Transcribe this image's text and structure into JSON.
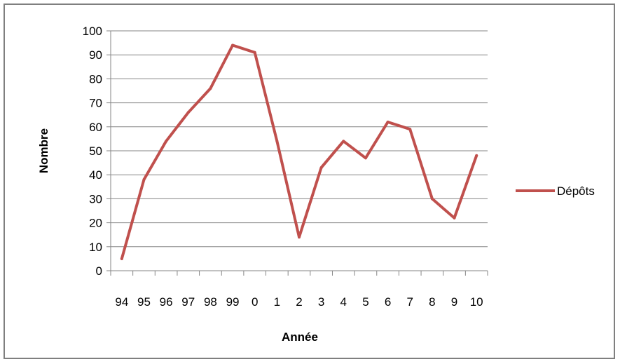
{
  "chart_data": {
    "type": "line",
    "title": "",
    "xlabel": "Année",
    "ylabel": "Nombre",
    "categories": [
      "94",
      "95",
      "96",
      "97",
      "98",
      "99",
      "0",
      "1",
      "2",
      "3",
      "4",
      "5",
      "6",
      "7",
      "8",
      "9",
      "10"
    ],
    "series": [
      {
        "name": "Dépôts",
        "color": "#c0504d",
        "values": [
          5,
          38,
          54,
          66,
          76,
          94,
          91,
          54,
          14,
          43,
          54,
          47,
          62,
          59,
          30,
          22,
          48
        ]
      }
    ],
    "ylim": [
      0,
      100
    ],
    "yticks": [
      "0",
      "10",
      "20",
      "30",
      "40",
      "50",
      "60",
      "70",
      "80",
      "90",
      "100"
    ],
    "grid": "horizontal",
    "legend_position": "right"
  }
}
